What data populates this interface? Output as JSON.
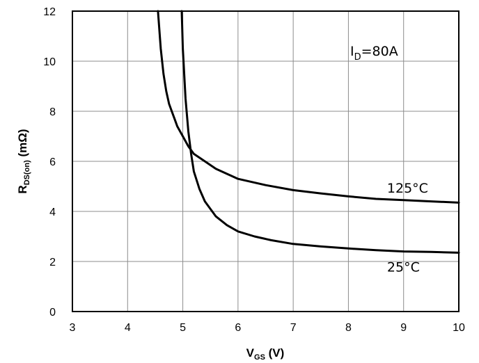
{
  "chart_data": {
    "type": "line",
    "xlabel": {
      "main": "V",
      "sub": "GS",
      "unit": " (V)"
    },
    "ylabel": {
      "main": "R",
      "sub": "DS(on)",
      "unit": " (mΩ)"
    },
    "xlim": [
      3,
      10
    ],
    "ylim": [
      0,
      12
    ],
    "xticks": [
      "3",
      "4",
      "5",
      "6",
      "7",
      "8",
      "9",
      "10"
    ],
    "yticks": [
      "0",
      "2",
      "4",
      "6",
      "8",
      "10",
      "12"
    ],
    "grid": true,
    "annotation": {
      "main": "I",
      "sub": "D",
      "rest": "=80A"
    },
    "series": [
      {
        "name": "125°C",
        "x": [
          4.55,
          4.6,
          4.65,
          4.7,
          4.75,
          4.8,
          4.85,
          4.9,
          5.0,
          5.1,
          5.2,
          5.4,
          5.6,
          5.8,
          6.0,
          6.5,
          7.0,
          7.5,
          8.0,
          8.5,
          9.0,
          9.5,
          10.0
        ],
        "y": [
          12.0,
          10.5,
          9.5,
          8.8,
          8.3,
          8.0,
          7.7,
          7.4,
          7.0,
          6.6,
          6.3,
          6.0,
          5.7,
          5.5,
          5.3,
          5.05,
          4.85,
          4.72,
          4.6,
          4.5,
          4.45,
          4.4,
          4.35
        ]
      },
      {
        "name": "25°C",
        "x": [
          4.98,
          5.0,
          5.05,
          5.1,
          5.15,
          5.2,
          5.3,
          5.4,
          5.6,
          5.8,
          6.0,
          6.3,
          6.6,
          7.0,
          7.5,
          8.0,
          8.5,
          9.0,
          9.5,
          10.0
        ],
        "y": [
          12.0,
          10.5,
          8.5,
          7.2,
          6.3,
          5.6,
          4.9,
          4.4,
          3.8,
          3.45,
          3.2,
          3.0,
          2.85,
          2.7,
          2.6,
          2.52,
          2.45,
          2.4,
          2.38,
          2.35
        ]
      }
    ],
    "series_labels": [
      {
        "name": "125°C",
        "x": 8.7,
        "y": 4.75
      },
      {
        "name": "25°C",
        "x": 8.7,
        "y": 1.6
      }
    ]
  }
}
